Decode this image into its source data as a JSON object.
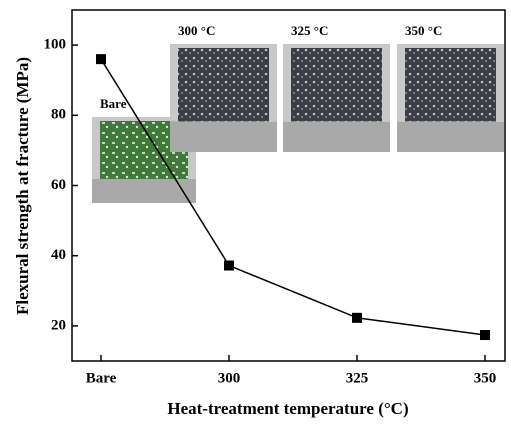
{
  "chart_data": {
    "type": "line",
    "xlabel": "Heat-treatment temperature (°C)",
    "ylabel": "Flexural strength at fracture (MPa)",
    "categories": [
      "Bare",
      "300",
      "325",
      "350"
    ],
    "values": [
      96,
      37.2,
      22.3,
      17.4
    ],
    "color": "#000000",
    "ylim": [
      10,
      110
    ],
    "yticks": [
      20,
      40,
      60,
      80,
      100
    ],
    "insets": [
      "Bare",
      "300 °C",
      "325 °C",
      "350 °C"
    ]
  }
}
